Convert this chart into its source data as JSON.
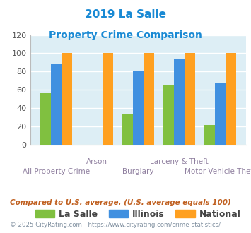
{
  "title_line1": "2019 La Salle",
  "title_line2": "Property Crime Comparison",
  "categories": [
    "All Property Crime",
    "Arson",
    "Burglary",
    "Larceny & Theft",
    "Motor Vehicle Theft"
  ],
  "la_salle": [
    56,
    0,
    33,
    65,
    21
  ],
  "illinois": [
    88,
    0,
    80,
    93,
    68
  ],
  "national": [
    100,
    100,
    100,
    100,
    100
  ],
  "color_lasalle": "#80c040",
  "color_illinois": "#4090e0",
  "color_national": "#ffa020",
  "ylim": [
    0,
    120
  ],
  "yticks": [
    0,
    20,
    40,
    60,
    80,
    100,
    120
  ],
  "legend_labels": [
    "La Salle",
    "Illinois",
    "National"
  ],
  "footnote1": "Compared to U.S. average. (U.S. average equals 100)",
  "footnote2": "© 2025 CityRating.com - https://www.cityrating.com/crime-statistics/",
  "title_color": "#1a8ad4",
  "xlabel_color": "#9080a0",
  "footnote1_color": "#c06020",
  "footnote2_color": "#8090a0",
  "bg_color": "#ddeef5",
  "grid_color": "#ffffff",
  "upper_labels": [
    "",
    "Arson",
    "",
    "Larceny & Theft",
    ""
  ],
  "lower_labels": [
    "All Property Crime",
    "",
    "Burglary",
    "",
    "Motor Vehicle Theft"
  ]
}
